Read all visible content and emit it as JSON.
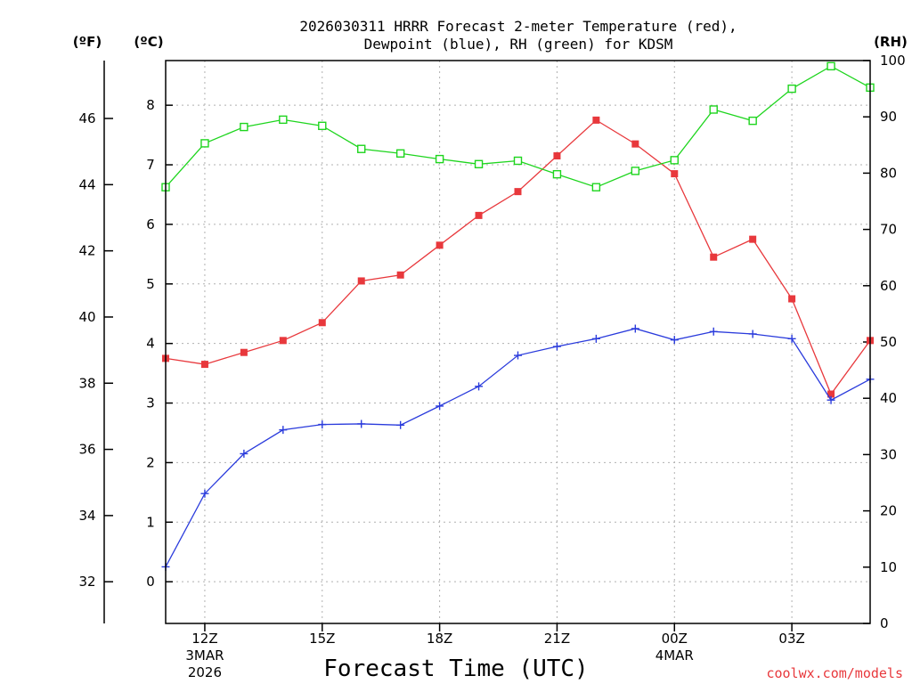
{
  "chart_data": {
    "type": "line",
    "title_line1": "2026030311 HRRR Forecast 2-meter Temperature (red),",
    "title_line2": "Dewpoint (blue), RH (green) for KDSM",
    "xlabel": "Forecast Time (UTC)",
    "credit": "coolwx.com/models",
    "units": {
      "fahrenheit": "(ºF)",
      "celsius": "(ºC)",
      "rh": "(RH)"
    },
    "x_hours": [
      0,
      1,
      2,
      3,
      4,
      5,
      6,
      7,
      8,
      9,
      10,
      11,
      12,
      13,
      14,
      15,
      16,
      17,
      18
    ],
    "xlim": [
      0,
      18
    ],
    "x_tick_hours": [
      1,
      4,
      7,
      10,
      13,
      16
    ],
    "x_tick_labels": [
      "12Z",
      "15Z",
      "18Z",
      "21Z",
      "00Z",
      "03Z"
    ],
    "date_label_1": {
      "hour": 1,
      "lines": [
        "3MAR",
        "2026"
      ]
    },
    "date_label_2": {
      "hour": 13,
      "lines": [
        "4MAR"
      ]
    },
    "celsius_axis": {
      "ylim": [
        -0.7,
        8.75
      ],
      "ticks": [
        "0",
        "1",
        "2",
        "3",
        "4",
        "5",
        "6",
        "7",
        "8"
      ],
      "tick_values": [
        0,
        1,
        2,
        3,
        4,
        5,
        6,
        7,
        8
      ]
    },
    "fahrenheit_axis": {
      "ticks": [
        "32",
        "34",
        "36",
        "38",
        "40",
        "42",
        "44",
        "46"
      ],
      "tick_values": [
        32,
        34,
        36,
        38,
        40,
        42,
        44,
        46
      ]
    },
    "rh_axis": {
      "ylim": [
        0,
        100
      ],
      "ticks": [
        "0",
        "10",
        "20",
        "30",
        "40",
        "50",
        "60",
        "70",
        "80",
        "90",
        "100"
      ],
      "tick_values": [
        0,
        10,
        20,
        30,
        40,
        50,
        60,
        70,
        80,
        90,
        100
      ]
    },
    "series": [
      {
        "name": "Temperature",
        "axis": "celsius",
        "color": "#e8383c",
        "marker": "filled-square",
        "values": [
          3.75,
          3.65,
          3.85,
          4.05,
          4.35,
          5.05,
          5.15,
          5.65,
          6.15,
          6.55,
          7.15,
          7.75,
          7.35,
          6.85,
          5.45,
          5.75,
          4.75,
          3.15,
          4.05
        ]
      },
      {
        "name": "Dewpoint",
        "axis": "celsius",
        "color": "#2a3bdc",
        "marker": "plus",
        "values": [
          0.25,
          1.48,
          2.15,
          2.55,
          2.64,
          2.65,
          2.63,
          2.95,
          3.28,
          3.8,
          3.95,
          4.08,
          4.25,
          4.06,
          4.2,
          4.16,
          4.08,
          3.05,
          3.4
        ]
      },
      {
        "name": "RH",
        "axis": "rh",
        "color": "#1ed51e",
        "marker": "open-square",
        "values": [
          77.5,
          85.3,
          88.2,
          89.5,
          88.4,
          84.3,
          83.5,
          82.5,
          81.6,
          82.2,
          79.8,
          77.5,
          80.4,
          82.3,
          91.3,
          89.3,
          95.0,
          99.0,
          95.2
        ]
      }
    ]
  }
}
